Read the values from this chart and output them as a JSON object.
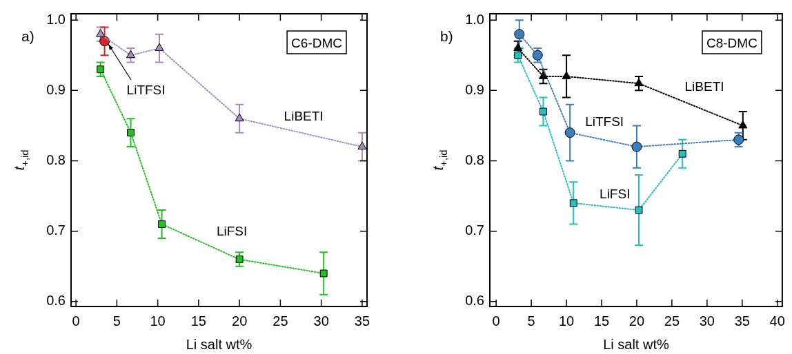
{
  "chart_data": [
    {
      "type": "line",
      "title": "C6-DMC",
      "xlabel": "Li salt wt%",
      "ylabel": "t$_{+,id}$",
      "annotations": [
        "a)"
      ],
      "xlim": [
        -0.6,
        35.6
      ],
      "xticks": [
        0,
        5,
        10,
        15,
        20,
        25,
        30,
        35
      ],
      "ylim": [
        0.593,
        1.009
      ],
      "yticks": [
        {
          "value": 0.6,
          "label": "0.6"
        },
        {
          "value": 0.7,
          "label": "0.7"
        },
        {
          "value": 0.8,
          "label": "0.8"
        },
        {
          "value": 0.9,
          "label": "0.9"
        },
        {
          "value": 1.0,
          "label": "1.0"
        }
      ],
      "grid": false,
      "legend": false,
      "line_style": "dotted",
      "series": [
        {
          "name": "LiBETI",
          "marker": "triangle",
          "color": "#a48cc0",
          "x": [
            3,
            6.7,
            10.2,
            20,
            35
          ],
          "values": [
            0.98,
            0.95,
            0.96,
            0.86,
            0.82
          ],
          "errors": [
            0.01,
            0.01,
            0.02,
            0.02,
            0.02
          ]
        },
        {
          "name": "LiTFSI",
          "marker": "circle",
          "color": "#d62728",
          "x": [
            3.5
          ],
          "values": [
            0.97
          ],
          "errors": [
            0.02
          ]
        },
        {
          "name": "LiFSI",
          "marker": "square",
          "color": "#22c022",
          "x": [
            3,
            6.7,
            10.5,
            20,
            30.3
          ],
          "values": [
            0.93,
            0.84,
            0.71,
            0.66,
            0.64
          ],
          "errors": [
            0.01,
            0.02,
            0.02,
            0.01,
            0.03
          ]
        }
      ]
    },
    {
      "type": "line",
      "title": "C8-DMC",
      "xlabel": "Li salt wt%",
      "ylabel": "t$_{+,id}$",
      "annotations": [
        "b)"
      ],
      "xlim": [
        -0.9,
        40.7
      ],
      "xticks": [
        0,
        5,
        10,
        15,
        20,
        25,
        30,
        35,
        40
      ],
      "ylim": [
        0.593,
        1.009
      ],
      "yticks": [
        {
          "value": 0.6,
          "label": "0.6"
        },
        {
          "value": 0.7,
          "label": "0.7"
        },
        {
          "value": 0.8,
          "label": "0.8"
        },
        {
          "value": 0.9,
          "label": "0.9"
        },
        {
          "value": 1.0,
          "label": "1.0"
        }
      ],
      "grid": false,
      "legend": false,
      "line_style": "dotted",
      "series": [
        {
          "name": "LiBETI",
          "marker": "triangle",
          "color": "#000000",
          "x": [
            3.1,
            6.7,
            10,
            20.3,
            35.1
          ],
          "values": [
            0.96,
            0.92,
            0.92,
            0.91,
            0.85
          ],
          "errors": [
            0.01,
            0.01,
            0.03,
            0.01,
            0.02
          ]
        },
        {
          "name": "LiTFSI",
          "marker": "circle",
          "color": "#3a7ec0",
          "x": [
            3.3,
            5.9,
            10.5,
            20,
            34.5
          ],
          "values": [
            0.98,
            0.95,
            0.84,
            0.82,
            0.83
          ],
          "errors": [
            0.02,
            0.01,
            0.04,
            0.03,
            0.01
          ]
        },
        {
          "name": "LiFSI",
          "marker": "square",
          "color": "#22c0c0",
          "x": [
            3.1,
            6.7,
            11,
            20.3,
            26.5
          ],
          "values": [
            0.95,
            0.87,
            0.74,
            0.73,
            0.81
          ],
          "errors": [
            0.01,
            0.02,
            0.03,
            0.05,
            0.02
          ]
        }
      ]
    }
  ]
}
